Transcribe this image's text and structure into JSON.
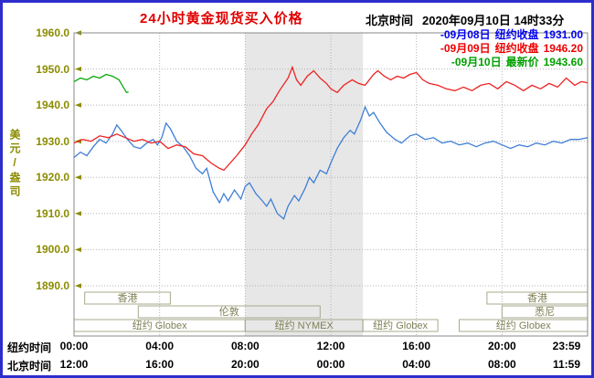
{
  "header": {
    "title": "24小时黄金现货买入价格",
    "timezone_label": "北京时间",
    "timestamp": "2020年09月10日 14时33分"
  },
  "chart_data": {
    "type": "line",
    "title": "24小时黄金现货买入价格",
    "ylabel": "美元/盎司",
    "ylim": [
      1890,
      1960
    ],
    "y_ticks": [
      1960,
      1950,
      1940,
      1930,
      1920,
      1910,
      1900,
      1890
    ],
    "x_ticks": {
      "hours": [
        0,
        4,
        8,
        12,
        16,
        20,
        24
      ],
      "ny": [
        "00:00",
        "04:00",
        "08:00",
        "12:00",
        "16:00",
        "20:00",
        "23:59"
      ],
      "bj": [
        "12:00",
        "16:00",
        "20:00",
        "00:00",
        "04:00",
        "08:00",
        "11:59"
      ],
      "ny_axis_label": "纽约时间",
      "bj_axis_label": "北京时间"
    },
    "grid": true,
    "legend_position": "top-right",
    "band": {
      "start_hour": 8,
      "end_hour": 13.5,
      "color": "#e7e7e7"
    },
    "sessions": [
      {
        "row": 0,
        "label": "香港",
        "start": 0.5,
        "end": 4.5
      },
      {
        "row": 0,
        "label": "香港",
        "start": 19.3,
        "end": 24
      },
      {
        "row": 1,
        "label": "伦敦",
        "start": 3,
        "end": 11.5
      },
      {
        "row": 1,
        "label": "悉尼",
        "start": 20,
        "end": 24
      },
      {
        "row": 2,
        "label": "纽约 Globex",
        "start": 0,
        "end": 8
      },
      {
        "row": 2,
        "label": "纽约 NYMEX",
        "start": 8,
        "end": 13.5
      },
      {
        "row": 2,
        "label": "纽约 Globex",
        "start": 13.5,
        "end": 17
      },
      {
        "row": 2,
        "label": "纽约 Globex",
        "start": 18,
        "end": 24
      }
    ],
    "series": [
      {
        "name": "09月08日",
        "legend_prefix": "-09月08日",
        "legend_label": "纽约收盘",
        "legend_value": "1931.00",
        "color": "#3f7fd6",
        "legend_color": "#0000ee",
        "points": [
          [
            0,
            1925.5
          ],
          [
            0.3,
            1927
          ],
          [
            0.6,
            1926
          ],
          [
            0.9,
            1928.5
          ],
          [
            1.2,
            1930.5
          ],
          [
            1.5,
            1929.5
          ],
          [
            1.8,
            1932
          ],
          [
            2,
            1934.5
          ],
          [
            2.2,
            1933
          ],
          [
            2.5,
            1930.5
          ],
          [
            2.8,
            1928.5
          ],
          [
            3.1,
            1928
          ],
          [
            3.4,
            1929.5
          ],
          [
            3.7,
            1930.5
          ],
          [
            3.9,
            1929
          ],
          [
            4.1,
            1931
          ],
          [
            4.3,
            1935
          ],
          [
            4.5,
            1933.5
          ],
          [
            4.8,
            1930
          ],
          [
            5.1,
            1928.5
          ],
          [
            5.4,
            1926
          ],
          [
            5.7,
            1922.5
          ],
          [
            6,
            1921
          ],
          [
            6.2,
            1922.5
          ],
          [
            6.5,
            1916
          ],
          [
            6.8,
            1913
          ],
          [
            7,
            1915.5
          ],
          [
            7.2,
            1913.5
          ],
          [
            7.5,
            1916.5
          ],
          [
            7.8,
            1914
          ],
          [
            8,
            1917.5
          ],
          [
            8.2,
            1918.5
          ],
          [
            8.5,
            1915.5
          ],
          [
            8.8,
            1913.5
          ],
          [
            9,
            1912
          ],
          [
            9.2,
            1914
          ],
          [
            9.5,
            1910
          ],
          [
            9.8,
            1908.5
          ],
          [
            10,
            1912
          ],
          [
            10.3,
            1915
          ],
          [
            10.5,
            1913.5
          ],
          [
            10.8,
            1917
          ],
          [
            11,
            1920
          ],
          [
            11.2,
            1918.5
          ],
          [
            11.5,
            1922
          ],
          [
            11.8,
            1921
          ],
          [
            12,
            1924
          ],
          [
            12.3,
            1928
          ],
          [
            12.6,
            1931
          ],
          [
            12.9,
            1933
          ],
          [
            13.1,
            1932
          ],
          [
            13.4,
            1936
          ],
          [
            13.6,
            1939.5
          ],
          [
            13.8,
            1937
          ],
          [
            14,
            1938
          ],
          [
            14.3,
            1935
          ],
          [
            14.6,
            1932.5
          ],
          [
            15,
            1930.5
          ],
          [
            15.3,
            1929.5
          ],
          [
            15.7,
            1931.5
          ],
          [
            16,
            1932
          ],
          [
            16.4,
            1930.5
          ],
          [
            16.8,
            1931
          ],
          [
            17.2,
            1929.5
          ],
          [
            17.6,
            1930
          ],
          [
            18,
            1929
          ],
          [
            18.4,
            1929.5
          ],
          [
            18.8,
            1928.5
          ],
          [
            19.2,
            1929.5
          ],
          [
            19.6,
            1930
          ],
          [
            20,
            1929
          ],
          [
            20.4,
            1928
          ],
          [
            20.8,
            1929
          ],
          [
            21.2,
            1928.5
          ],
          [
            21.6,
            1929.5
          ],
          [
            22,
            1929
          ],
          [
            22.4,
            1930
          ],
          [
            22.8,
            1929.5
          ],
          [
            23.2,
            1930.5
          ],
          [
            23.6,
            1930.5
          ],
          [
            24,
            1931
          ]
        ]
      },
      {
        "name": "09月09日",
        "legend_prefix": "-09月09日",
        "legend_label": "纽约收盘",
        "legend_value": "1946.20",
        "color": "#ee2222",
        "legend_color": "#ee0000",
        "points": [
          [
            0,
            1929.5
          ],
          [
            0.4,
            1930.5
          ],
          [
            0.8,
            1930
          ],
          [
            1.2,
            1931.5
          ],
          [
            1.6,
            1931
          ],
          [
            2,
            1932
          ],
          [
            2.4,
            1931
          ],
          [
            2.8,
            1930
          ],
          [
            3.2,
            1930.5
          ],
          [
            3.6,
            1929.5
          ],
          [
            4,
            1930
          ],
          [
            4.4,
            1928
          ],
          [
            4.8,
            1929
          ],
          [
            5.2,
            1928.5
          ],
          [
            5.6,
            1926.5
          ],
          [
            6,
            1926
          ],
          [
            6.4,
            1924
          ],
          [
            6.8,
            1922.5
          ],
          [
            7,
            1922
          ],
          [
            7.3,
            1924
          ],
          [
            7.6,
            1926
          ],
          [
            8,
            1929
          ],
          [
            8.3,
            1932
          ],
          [
            8.6,
            1934.5
          ],
          [
            9,
            1939
          ],
          [
            9.3,
            1941
          ],
          [
            9.6,
            1944
          ],
          [
            10,
            1947.5
          ],
          [
            10.2,
            1950.5
          ],
          [
            10.4,
            1947
          ],
          [
            10.6,
            1945.5
          ],
          [
            10.9,
            1948
          ],
          [
            11.2,
            1949.5
          ],
          [
            11.5,
            1947.5
          ],
          [
            11.8,
            1946
          ],
          [
            12,
            1944.5
          ],
          [
            12.3,
            1943.5
          ],
          [
            12.6,
            1945.5
          ],
          [
            13,
            1947
          ],
          [
            13.3,
            1946
          ],
          [
            13.6,
            1945.5
          ],
          [
            14,
            1948.5
          ],
          [
            14.2,
            1949.5
          ],
          [
            14.5,
            1948
          ],
          [
            14.8,
            1947
          ],
          [
            15.1,
            1948
          ],
          [
            15.4,
            1947.5
          ],
          [
            15.7,
            1948.5
          ],
          [
            16,
            1949
          ],
          [
            16.3,
            1947
          ],
          [
            16.6,
            1946
          ],
          [
            17,
            1945.5
          ],
          [
            17.4,
            1944.5
          ],
          [
            17.8,
            1944
          ],
          [
            18.2,
            1945
          ],
          [
            18.6,
            1944
          ],
          [
            19,
            1945.5
          ],
          [
            19.4,
            1946
          ],
          [
            19.8,
            1944.5
          ],
          [
            20.2,
            1946.5
          ],
          [
            20.6,
            1945.5
          ],
          [
            21,
            1944
          ],
          [
            21.4,
            1945.5
          ],
          [
            21.8,
            1944.5
          ],
          [
            22.2,
            1946
          ],
          [
            22.6,
            1945
          ],
          [
            23,
            1947.5
          ],
          [
            23.4,
            1945.5
          ],
          [
            23.7,
            1946.5
          ],
          [
            24,
            1946.2
          ]
        ]
      },
      {
        "name": "09月10日",
        "legend_prefix": "-09月10日",
        "legend_label": "最新价",
        "legend_value": "1943.60",
        "color": "#11aa11",
        "legend_color": "#00a000",
        "points": [
          [
            0,
            1946.5
          ],
          [
            0.3,
            1947.5
          ],
          [
            0.6,
            1947
          ],
          [
            0.9,
            1948
          ],
          [
            1.2,
            1947.5
          ],
          [
            1.5,
            1948.5
          ],
          [
            1.8,
            1948
          ],
          [
            2.1,
            1947
          ],
          [
            2.3,
            1945
          ],
          [
            2.45,
            1943.5
          ],
          [
            2.55,
            1943.6
          ]
        ]
      }
    ]
  }
}
